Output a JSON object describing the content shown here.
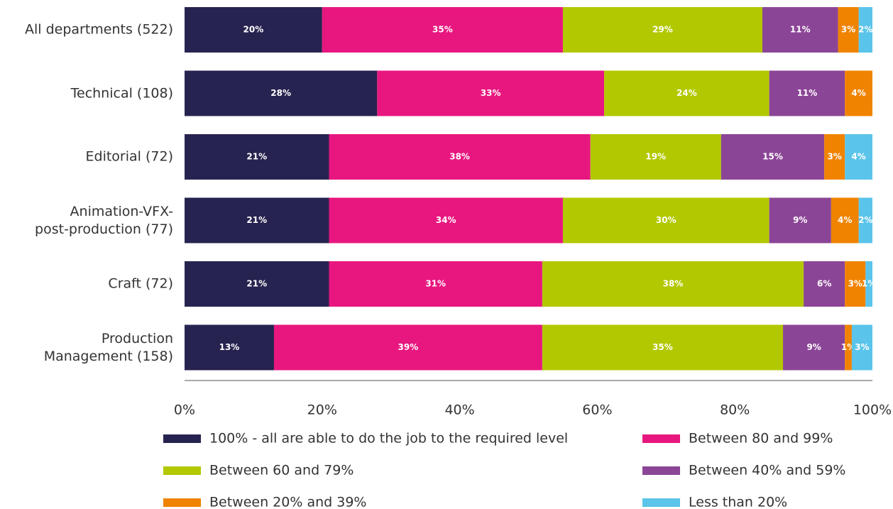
{
  "chart_data": {
    "type": "bar",
    "orientation": "horizontal",
    "stacked": true,
    "categories": [
      "All departments (522)",
      "Technical (108)",
      "Editorial (72)",
      "Animation-VFX-\npost-production (77)",
      "Craft (72)",
      "Production\nManagement (158)"
    ],
    "series": [
      {
        "name": "100% - all are able to do the job to the required level",
        "color": "#272350",
        "values": [
          20,
          28,
          21,
          21,
          21,
          13
        ],
        "value_labels": [
          "20%",
          "28%",
          "21%",
          "21%",
          "21%",
          "13%"
        ]
      },
      {
        "name": "Between 80 and 99%",
        "color": "#e8177f",
        "values": [
          35,
          33,
          38,
          34,
          31,
          39
        ],
        "value_labels": [
          "35%",
          "33%",
          "38%",
          "34%",
          "31%",
          "39%"
        ]
      },
      {
        "name": "Between 60 and 79%",
        "color": "#b2c800",
        "values": [
          29,
          24,
          19,
          30,
          38,
          35
        ],
        "value_labels": [
          "29%",
          "24%",
          "19%",
          "30%",
          "38%",
          "35%"
        ]
      },
      {
        "name": "Between 40% and 59%",
        "color": "#8b4596",
        "values": [
          11,
          11,
          15,
          9,
          6,
          9
        ],
        "value_labels": [
          "11%",
          "11%",
          "15%",
          "9%",
          "6%",
          "9%"
        ]
      },
      {
        "name": "Between 20% and 39%",
        "color": "#f08300",
        "values": [
          3,
          4,
          3,
          4,
          3,
          1
        ],
        "value_labels": [
          "3%",
          "4%",
          "3%",
          "4%",
          "3%",
          "1%"
        ]
      },
      {
        "name": "Less than 20%",
        "color": "#5ac4ea",
        "values": [
          2,
          null,
          4,
          2,
          1,
          3
        ],
        "value_labels": [
          "2%",
          null,
          "4%",
          "2%",
          "1%",
          "3%"
        ]
      }
    ],
    "xlim": [
      0,
      100
    ],
    "xticks": [
      {
        "value": 0,
        "label": "0%"
      },
      {
        "value": 20,
        "label": "20%"
      },
      {
        "value": 40,
        "label": "40%"
      },
      {
        "value": 60,
        "label": "60%"
      },
      {
        "value": 80,
        "label": "80%"
      },
      {
        "value": 100,
        "label": "100%"
      }
    ],
    "legend": "bottom"
  }
}
